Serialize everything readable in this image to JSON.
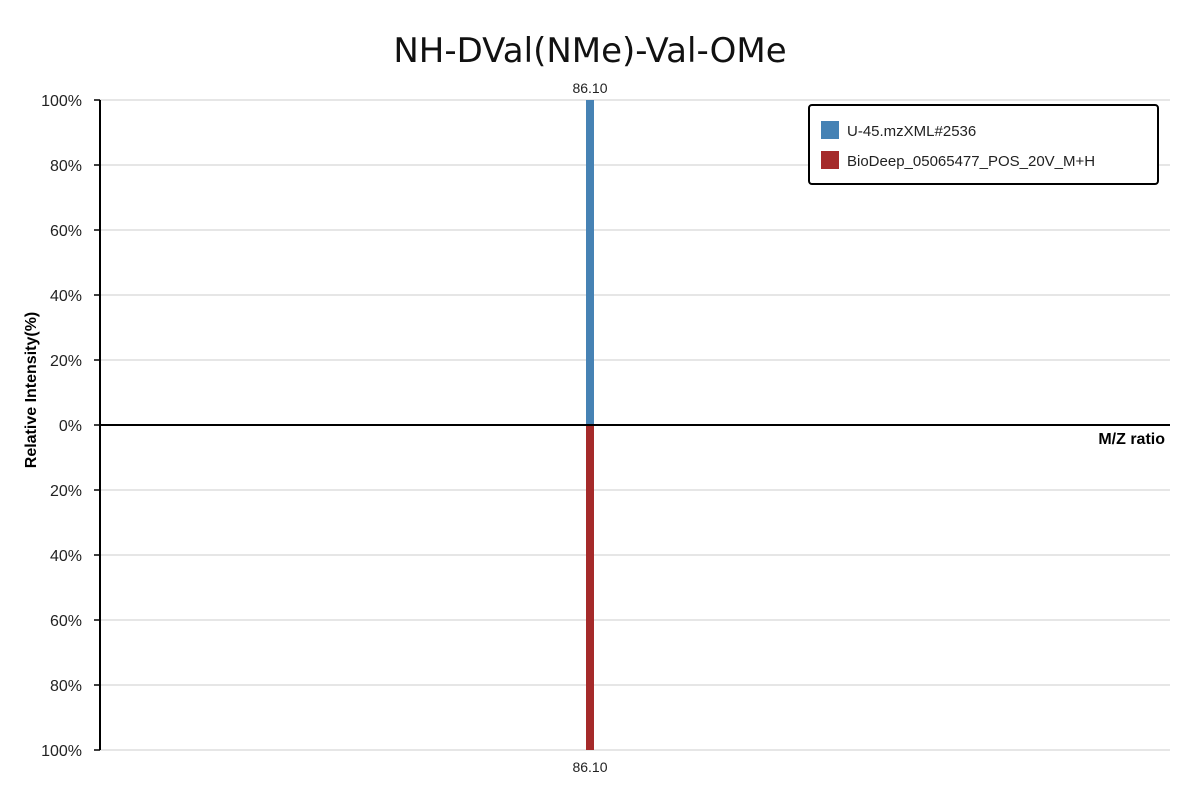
{
  "chart_data": {
    "type": "bar",
    "title": "NH-DVal(NMe)-Val-OMe",
    "xlabel": "M/Z ratio",
    "ylabel": "Relative Intensity(%)",
    "ylim": [
      -100,
      100
    ],
    "ytick_values": [
      100,
      80,
      60,
      40,
      20,
      0,
      -20,
      -40,
      -60,
      -80,
      -100
    ],
    "ytick_labels": [
      "100%",
      "80%",
      "60%",
      "40%",
      "20%",
      "0%",
      "20%",
      "40%",
      "60%",
      "80%",
      "100%"
    ],
    "grid": true,
    "legend_position": "top-right",
    "series": [
      {
        "name": "U-45.mzXML#2536",
        "color": "#4682b4",
        "direction": "up",
        "peaks": [
          {
            "mz": 86.1,
            "intensity": 100,
            "label": "86.10"
          }
        ]
      },
      {
        "name": "BioDeep_05065477_POS_20V_M+H",
        "color": "#a52a2a",
        "direction": "down",
        "peaks": [
          {
            "mz": 86.1,
            "intensity": 100,
            "label": "86.10"
          }
        ]
      }
    ]
  }
}
